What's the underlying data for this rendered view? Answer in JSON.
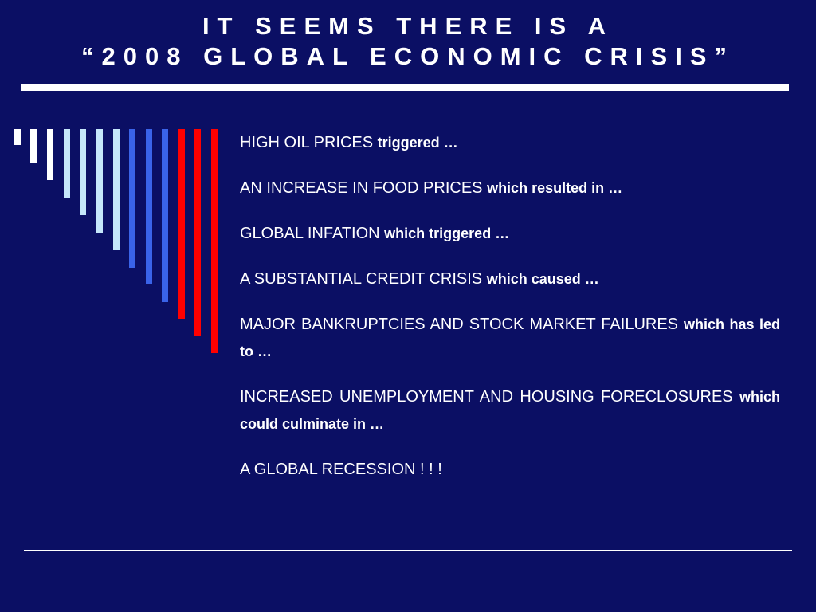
{
  "slide": {
    "title_line1": "IT SEEMS THERE IS A",
    "title_line2": "“2008 GLOBAL ECONOMIC CRISIS”",
    "accent_colors": {
      "background": "#0b0f64",
      "white": "#ffffff",
      "light_blue": "#c5e6fb",
      "blue": "#3a63e9",
      "red": "#ff0000"
    },
    "items": [
      {
        "main": "HIGH OIL PRICES",
        "connector": "triggered …"
      },
      {
        "main": "AN INCREASE IN FOOD PRICES",
        "connector": "which resulted in …"
      },
      {
        "main": "GLOBAL INFATION",
        "connector": "which triggered …"
      },
      {
        "main": "A SUBSTANTIAL CREDIT CRISIS",
        "connector": "which caused …"
      },
      {
        "main": "MAJOR BANKRUPTCIES AND STOCK MARKET FAILURES",
        "connector": "which has led to …"
      },
      {
        "main": "INCREASED UNEMPLOYMENT AND HOUSING FORECLOSURES",
        "connector": "which could culminate in  …"
      },
      {
        "main": "A GLOBAL RECESSION ! ! !",
        "connector": ""
      }
    ]
  }
}
